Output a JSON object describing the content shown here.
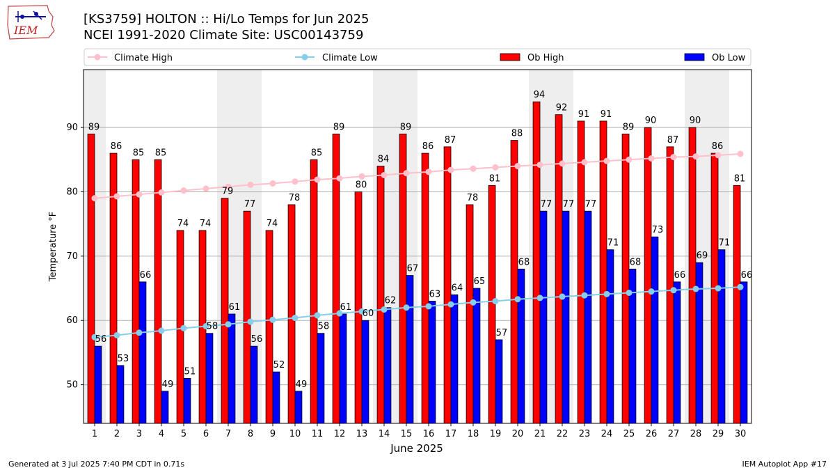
{
  "header": {
    "title": "[KS3759] HOLTON :: Hi/Lo Temps for Jun 2025",
    "subtitle": "NCEI 1991-2020 Climate Site: USC00143759"
  },
  "logo": {
    "text": "IEM",
    "icon": "iem-iowa-logo"
  },
  "footer": {
    "left": "Generated at 3 Jul 2025 7:40 PM CDT in 0.71s",
    "right": "IEM Autoplot App #17"
  },
  "colors": {
    "ob_high": "#ff0000",
    "ob_low": "#0000ff",
    "climate_high": "#ffc0cb",
    "climate_low": "#87ceeb",
    "weekend_shade": "#eeeeee",
    "grid": "#b0b0b0"
  },
  "chart_data": {
    "type": "bar",
    "xlabel": "June 2025",
    "ylabel": "Temperature °F",
    "ylim": [
      44,
      99
    ],
    "yticks": [
      50,
      60,
      70,
      80,
      90
    ],
    "grid": "horizontal",
    "legend_position": "top",
    "categories": [
      "1",
      "2",
      "3",
      "4",
      "5",
      "6",
      "7",
      "8",
      "9",
      "10",
      "11",
      "12",
      "13",
      "14",
      "15",
      "16",
      "17",
      "18",
      "19",
      "20",
      "21",
      "22",
      "23",
      "24",
      "25",
      "26",
      "27",
      "28",
      "29",
      "30"
    ],
    "weekend_days": [
      1,
      7,
      8,
      14,
      15,
      21,
      22,
      28,
      29
    ],
    "series": [
      {
        "name": "Ob High",
        "kind": "bar",
        "values": [
          89,
          86,
          85,
          85,
          74,
          74,
          79,
          77,
          74,
          78,
          85,
          89,
          80,
          84,
          89,
          86,
          87,
          78,
          81,
          88,
          94,
          92,
          91,
          91,
          89,
          90,
          87,
          90,
          86,
          81
        ]
      },
      {
        "name": "Ob Low",
        "kind": "bar",
        "values": [
          56,
          53,
          66,
          49,
          51,
          58,
          61,
          56,
          52,
          49,
          58,
          61,
          60,
          62,
          67,
          63,
          64,
          65,
          57,
          68,
          77,
          77,
          77,
          71,
          68,
          73,
          66,
          69,
          71,
          66
        ]
      },
      {
        "name": "Climate High",
        "kind": "line",
        "values": [
          79.0,
          79.3,
          79.6,
          79.9,
          80.2,
          80.5,
          80.8,
          81.1,
          81.3,
          81.6,
          81.9,
          82.1,
          82.4,
          82.6,
          82.9,
          83.1,
          83.4,
          83.6,
          83.8,
          84.0,
          84.2,
          84.4,
          84.6,
          84.8,
          85.0,
          85.2,
          85.4,
          85.5,
          85.7,
          85.9
        ]
      },
      {
        "name": "Climate Low",
        "kind": "line",
        "values": [
          57.4,
          57.7,
          58.1,
          58.4,
          58.8,
          59.1,
          59.4,
          59.8,
          60.1,
          60.4,
          60.8,
          61.1,
          61.4,
          61.7,
          62.0,
          62.2,
          62.5,
          62.8,
          63.0,
          63.3,
          63.5,
          63.7,
          63.9,
          64.1,
          64.3,
          64.5,
          64.7,
          64.9,
          65.0,
          65.2
        ]
      }
    ]
  }
}
